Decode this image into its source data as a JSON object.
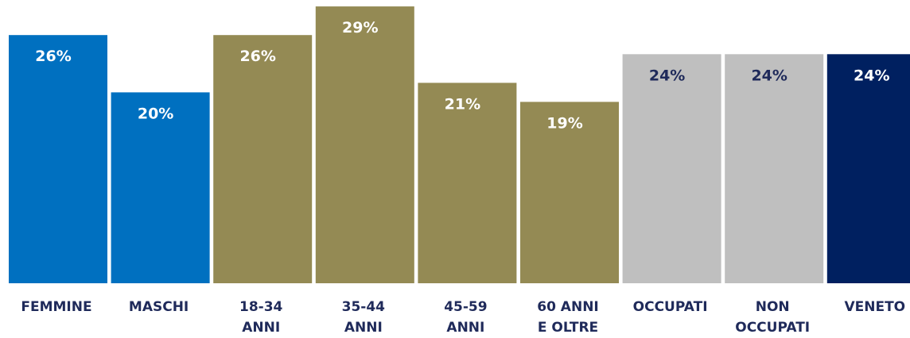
{
  "chart_data": {
    "type": "bar",
    "ylim": [
      0,
      30
    ],
    "grid": false,
    "categories": [
      {
        "lines": [
          "FEMMINE"
        ],
        "value": 26,
        "label": "26%",
        "color": "#0070c0",
        "label_color": "#ffffff"
      },
      {
        "lines": [
          "MASCHI"
        ],
        "value": 20,
        "label": "20%",
        "color": "#0070c0",
        "label_color": "#ffffff"
      },
      {
        "lines": [
          "18-34",
          "ANNI"
        ],
        "value": 26,
        "label": "26%",
        "color": "#948a54",
        "label_color": "#ffffff"
      },
      {
        "lines": [
          "35-44",
          "ANNI"
        ],
        "value": 29,
        "label": "29%",
        "color": "#948a54",
        "label_color": "#ffffff"
      },
      {
        "lines": [
          "45-59",
          "ANNI"
        ],
        "value": 21,
        "label": "21%",
        "color": "#948a54",
        "label_color": "#ffffff"
      },
      {
        "lines": [
          "60 ANNI",
          "E OLTRE"
        ],
        "value": 19,
        "label": "19%",
        "color": "#948a54",
        "label_color": "#ffffff"
      },
      {
        "lines": [
          "OCCUPATI"
        ],
        "value": 24,
        "label": "24%",
        "color": "#bfbfbf",
        "label_color": "#1f2a5a"
      },
      {
        "lines": [
          "NON",
          "OCCUPATI"
        ],
        "value": 24,
        "label": "24%",
        "color": "#bfbfbf",
        "label_color": "#1f2a5a"
      },
      {
        "lines": [
          "VENETO"
        ],
        "value": 24,
        "label": "24%",
        "color": "#002060",
        "label_color": "#ffffff"
      }
    ]
  }
}
